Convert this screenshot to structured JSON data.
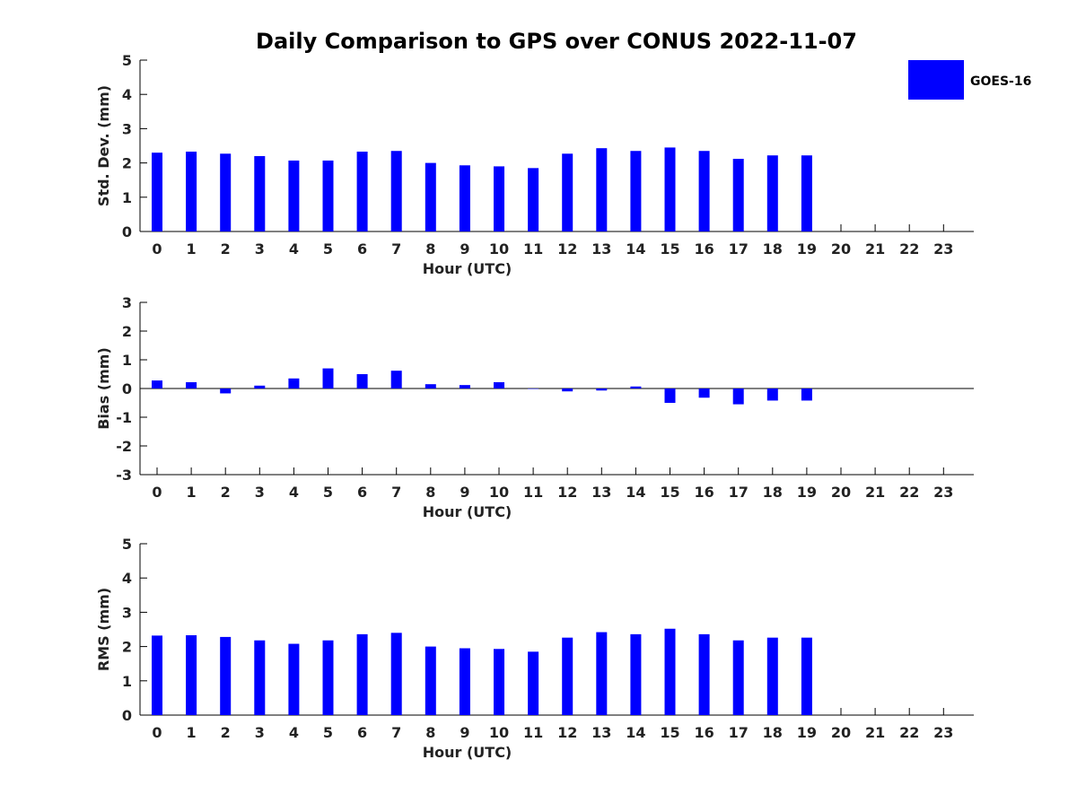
{
  "figure": {
    "title": "Daily Comparison to GPS over CONUS 2022-11-07",
    "legend": {
      "label": "GOES-16",
      "color": "#0000ff",
      "placement": "top-right"
    }
  },
  "chart_data": [
    {
      "type": "bar",
      "xlabel": "Hour (UTC)",
      "ylabel": "Std. Dev. (mm)",
      "ylim": [
        0,
        5
      ],
      "yticks": [
        0,
        1,
        2,
        3,
        4,
        5
      ],
      "x": [
        0,
        1,
        2,
        3,
        4,
        5,
        6,
        7,
        8,
        9,
        10,
        11,
        12,
        13,
        14,
        15,
        16,
        17,
        18,
        19,
        20,
        21,
        22,
        23
      ],
      "series": [
        {
          "name": "GOES-16",
          "color": "#0000ff",
          "values": [
            2.3,
            2.33,
            2.27,
            2.2,
            2.07,
            2.07,
            2.33,
            2.35,
            2.0,
            1.93,
            1.9,
            1.85,
            2.27,
            2.43,
            2.35,
            2.45,
            2.35,
            2.12,
            2.22,
            2.22,
            null,
            null,
            null,
            null
          ]
        }
      ]
    },
    {
      "type": "bar",
      "xlabel": "Hour (UTC)",
      "ylabel": "Bias (mm)",
      "ylim": [
        -3,
        3
      ],
      "yticks": [
        -3,
        -2,
        -1,
        0,
        1,
        2,
        3
      ],
      "zero_line": true,
      "x": [
        0,
        1,
        2,
        3,
        4,
        5,
        6,
        7,
        8,
        9,
        10,
        11,
        12,
        13,
        14,
        15,
        16,
        17,
        18,
        19,
        20,
        21,
        22,
        23
      ],
      "series": [
        {
          "name": "GOES-16",
          "color": "#0000ff",
          "values": [
            0.28,
            0.22,
            -0.17,
            0.1,
            0.35,
            0.7,
            0.5,
            0.62,
            0.15,
            0.12,
            0.22,
            0.0,
            -0.1,
            -0.07,
            0.07,
            -0.5,
            -0.32,
            -0.55,
            -0.42,
            -0.42,
            null,
            null,
            null,
            null
          ]
        }
      ]
    },
    {
      "type": "bar",
      "xlabel": "Hour (UTC)",
      "ylabel": "RMS (mm)",
      "ylim": [
        0,
        5
      ],
      "yticks": [
        0,
        1,
        2,
        3,
        4,
        5
      ],
      "x": [
        0,
        1,
        2,
        3,
        4,
        5,
        6,
        7,
        8,
        9,
        10,
        11,
        12,
        13,
        14,
        15,
        16,
        17,
        18,
        19,
        20,
        21,
        22,
        23
      ],
      "series": [
        {
          "name": "GOES-16",
          "color": "#0000ff",
          "values": [
            2.32,
            2.33,
            2.28,
            2.18,
            2.08,
            2.18,
            2.36,
            2.4,
            2.0,
            1.95,
            1.93,
            1.85,
            2.26,
            2.42,
            2.36,
            2.52,
            2.36,
            2.18,
            2.26,
            2.26,
            null,
            null,
            null,
            null
          ]
        }
      ]
    }
  ]
}
